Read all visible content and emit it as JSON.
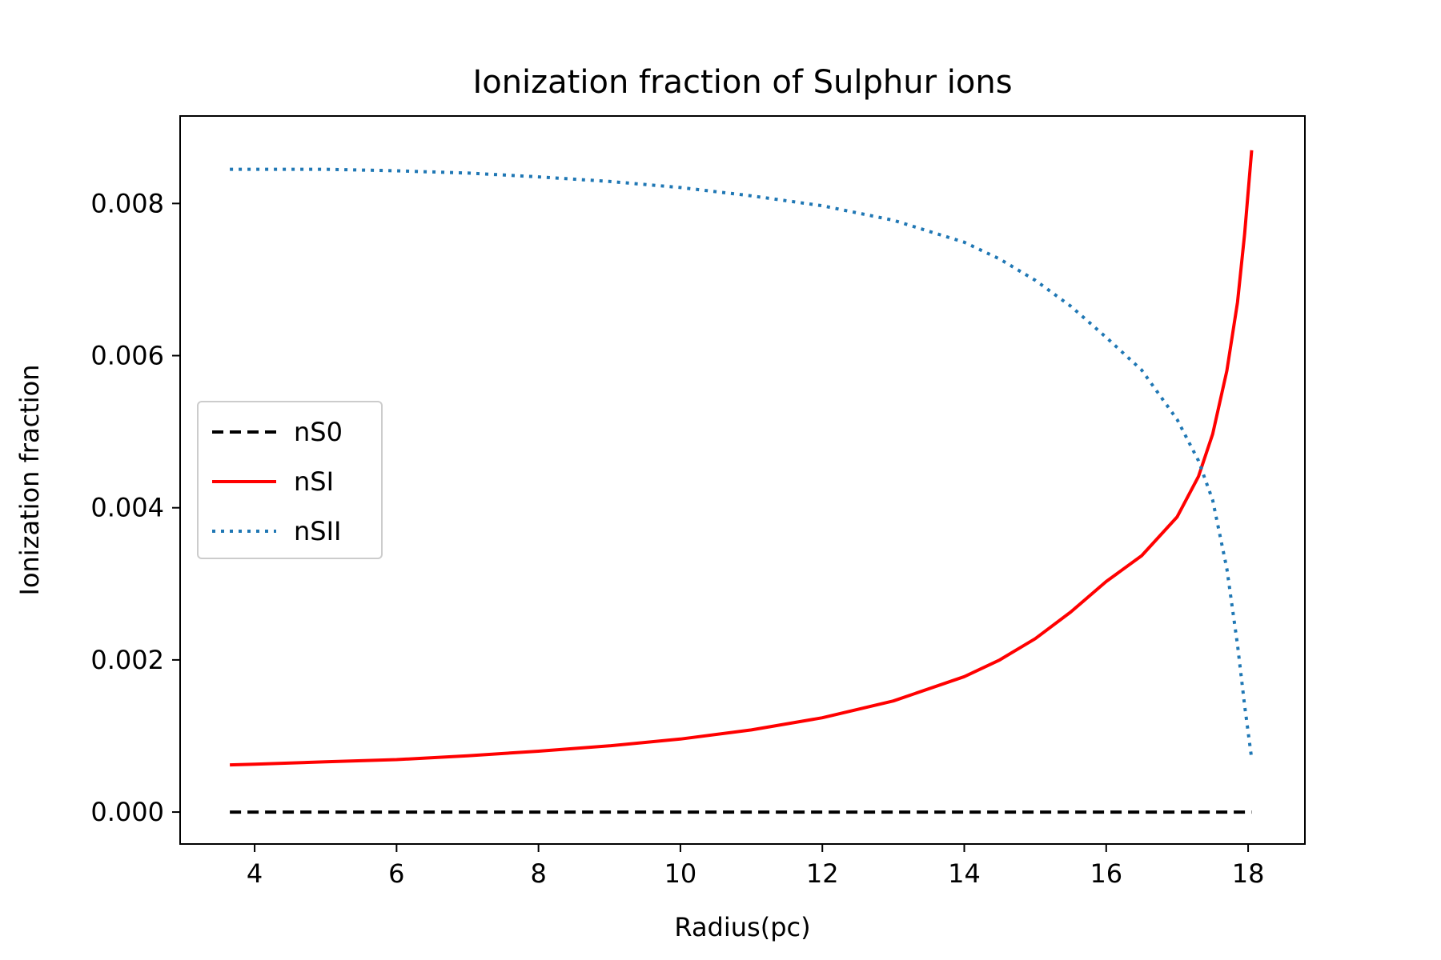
{
  "chart_data": {
    "type": "line",
    "title": "Ionization fraction of Sulphur ions",
    "xlabel": "Radius(pc)",
    "ylabel": "Ionization fraction",
    "xlim": [
      2.95,
      18.8
    ],
    "ylim": [
      -0.00042,
      0.00915
    ],
    "x_ticks": [
      4,
      6,
      8,
      10,
      12,
      14,
      16,
      18
    ],
    "x_tick_labels": [
      "4",
      "6",
      "8",
      "10",
      "12",
      "14",
      "16",
      "18"
    ],
    "y_ticks": [
      0.0,
      0.002,
      0.004,
      0.006,
      0.008
    ],
    "y_tick_labels": [
      "0.000",
      "0.002",
      "0.004",
      "0.006",
      "0.008"
    ],
    "grid": false,
    "legend_position": "center-left",
    "series": [
      {
        "name": "nS0",
        "color": "#000000",
        "style": "dashed",
        "x": [
          3.65,
          18.05
        ],
        "y": [
          0.0,
          0.0
        ]
      },
      {
        "name": "nSI",
        "color": "#ff0000",
        "style": "solid",
        "x": [
          3.65,
          4.0,
          5.0,
          6.0,
          7.0,
          8.0,
          9.0,
          10.0,
          11.0,
          12.0,
          13.0,
          14.0,
          14.5,
          15.0,
          15.5,
          16.0,
          16.5,
          17.0,
          17.3,
          17.5,
          17.7,
          17.85,
          17.95,
          18.05
        ],
        "y": [
          0.00062,
          0.00063,
          0.00066,
          0.00069,
          0.00074,
          0.0008,
          0.00087,
          0.00096,
          0.00108,
          0.00124,
          0.00146,
          0.00178,
          0.002,
          0.00228,
          0.00263,
          0.00303,
          0.00337,
          0.00388,
          0.00441,
          0.00497,
          0.0058,
          0.0067,
          0.0076,
          0.0087
        ]
      },
      {
        "name": "nSII",
        "color": "#1f77b4",
        "style": "dotted",
        "x": [
          3.65,
          5.0,
          6.0,
          7.0,
          8.0,
          9.0,
          10.0,
          11.0,
          12.0,
          13.0,
          14.0,
          14.5,
          15.0,
          15.5,
          16.0,
          16.5,
          17.0,
          17.3,
          17.5,
          17.7,
          17.85,
          17.95,
          18.05
        ],
        "y": [
          0.00845,
          0.00845,
          0.00843,
          0.0084,
          0.00835,
          0.00829,
          0.00821,
          0.0081,
          0.00797,
          0.00778,
          0.00749,
          0.00727,
          0.00699,
          0.00665,
          0.00624,
          0.00581,
          0.00516,
          0.00462,
          0.0041,
          0.0032,
          0.0022,
          0.0014,
          0.0007
        ]
      }
    ]
  }
}
